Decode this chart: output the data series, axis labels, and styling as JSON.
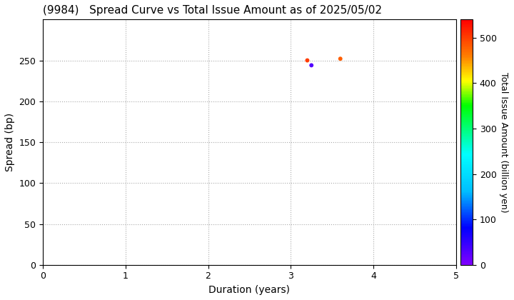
{
  "title": "(9984)   Spread Curve vs Total Issue Amount as of 2025/05/02",
  "xlabel": "Duration (years)",
  "ylabel": "Spread (bp)",
  "colorbar_label": "Total Issue Amount (billion yen)",
  "xlim": [
    0,
    5
  ],
  "ylim": [
    0,
    300
  ],
  "xticks": [
    0,
    1,
    2,
    3,
    4,
    5
  ],
  "yticks": [
    0,
    50,
    100,
    150,
    200,
    250
  ],
  "colorbar_ticks": [
    0,
    100,
    200,
    300,
    400,
    500
  ],
  "colorbar_vmin": 0,
  "colorbar_vmax": 540,
  "points": [
    {
      "duration": 3.2,
      "spread": 250,
      "amount": 500
    },
    {
      "duration": 3.25,
      "spread": 244,
      "amount": 30
    },
    {
      "duration": 3.6,
      "spread": 252,
      "amount": 480
    }
  ],
  "grid_color": "#aaaaaa",
  "grid_linestyle": ":",
  "grid_linewidth": 0.8,
  "bg_color": "#ffffff",
  "title_fontsize": 11,
  "axis_label_fontsize": 10,
  "tick_fontsize": 9,
  "colorbar_fontsize": 9,
  "marker_size": 18,
  "marker_edge_width": 0.3
}
